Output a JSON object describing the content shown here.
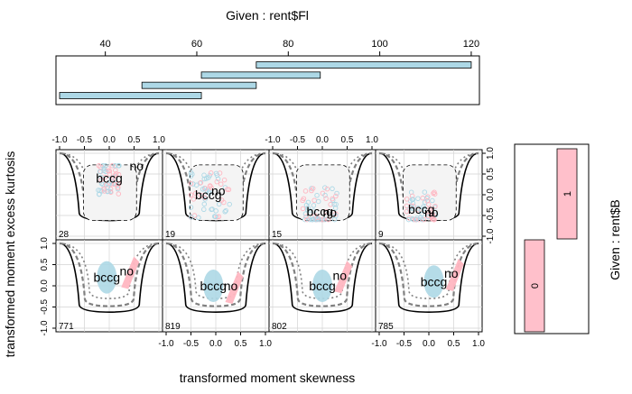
{
  "chart_data": {
    "type": "scatter",
    "xlabel": "transformed moment skewness",
    "ylabel": "transformed moment excess kurtosis",
    "xlim": [
      -1.0,
      1.0
    ],
    "ylim": [
      -1.0,
      1.0
    ],
    "x_ticks": [
      "-1.0",
      "-0.5",
      "0.0",
      "0.5",
      "1.0"
    ],
    "y_ticks": [
      "-1.0",
      "-0.5",
      "0.0",
      "0.5",
      "1.0"
    ],
    "grid": true,
    "given_fl": {
      "title": "Given : rent$Fl",
      "ticks": [
        40,
        60,
        80,
        100,
        120
      ],
      "range": [
        30,
        121
      ],
      "intervals": [
        [
          30,
          61
        ],
        [
          48,
          73
        ],
        [
          61,
          87
        ],
        [
          73,
          120
        ]
      ]
    },
    "given_b": {
      "title": "Given : rent$B",
      "levels": [
        {
          "label": "0",
          "color": "#ffc0cb"
        },
        {
          "label": "1",
          "color": "#ffc0cb"
        }
      ]
    },
    "series": [
      {
        "name": "bccg",
        "color": "#add8e6"
      },
      {
        "name": "no",
        "color": "#ffb6c1"
      }
    ],
    "panels": [
      {
        "row": 0,
        "col": 0,
        "count": "28",
        "bccg": [
          0.0,
          0.4
        ],
        "no": [
          0.55,
          0.7
        ],
        "spread": [
          0.22,
          0.4
        ]
      },
      {
        "row": 0,
        "col": 1,
        "count": "19",
        "bccg": [
          -0.15,
          0.0
        ],
        "no": [
          0.05,
          0.1
        ],
        "spread": [
          0.45,
          0.6
        ]
      },
      {
        "row": 0,
        "col": 2,
        "count": "15",
        "bccg": [
          -0.05,
          -0.4
        ],
        "no": [
          0.15,
          -0.42
        ],
        "spread": [
          0.35,
          0.6
        ]
      },
      {
        "row": 0,
        "col": 3,
        "count": "9",
        "bccg": [
          -0.15,
          -0.35
        ],
        "no": [
          0.05,
          -0.42
        ],
        "spread": [
          0.3,
          0.45
        ]
      },
      {
        "row": 1,
        "col": 0,
        "count": "771",
        "bccg": [
          -0.05,
          0.2
        ],
        "no": [
          0.35,
          0.35
        ],
        "spread": [
          0,
          0
        ]
      },
      {
        "row": 1,
        "col": 1,
        "count": "819",
        "bccg": [
          -0.05,
          0.0
        ],
        "no": [
          0.3,
          0.0
        ],
        "spread": [
          0,
          0
        ]
      },
      {
        "row": 1,
        "col": 2,
        "count": "802",
        "bccg": [
          0.0,
          0.0
        ],
        "no": [
          0.35,
          0.25
        ],
        "spread": [
          0,
          0
        ]
      },
      {
        "row": 1,
        "col": 3,
        "count": "785",
        "bccg": [
          0.1,
          0.1
        ],
        "no": [
          0.45,
          0.3
        ],
        "spread": [
          0,
          0
        ]
      }
    ]
  }
}
